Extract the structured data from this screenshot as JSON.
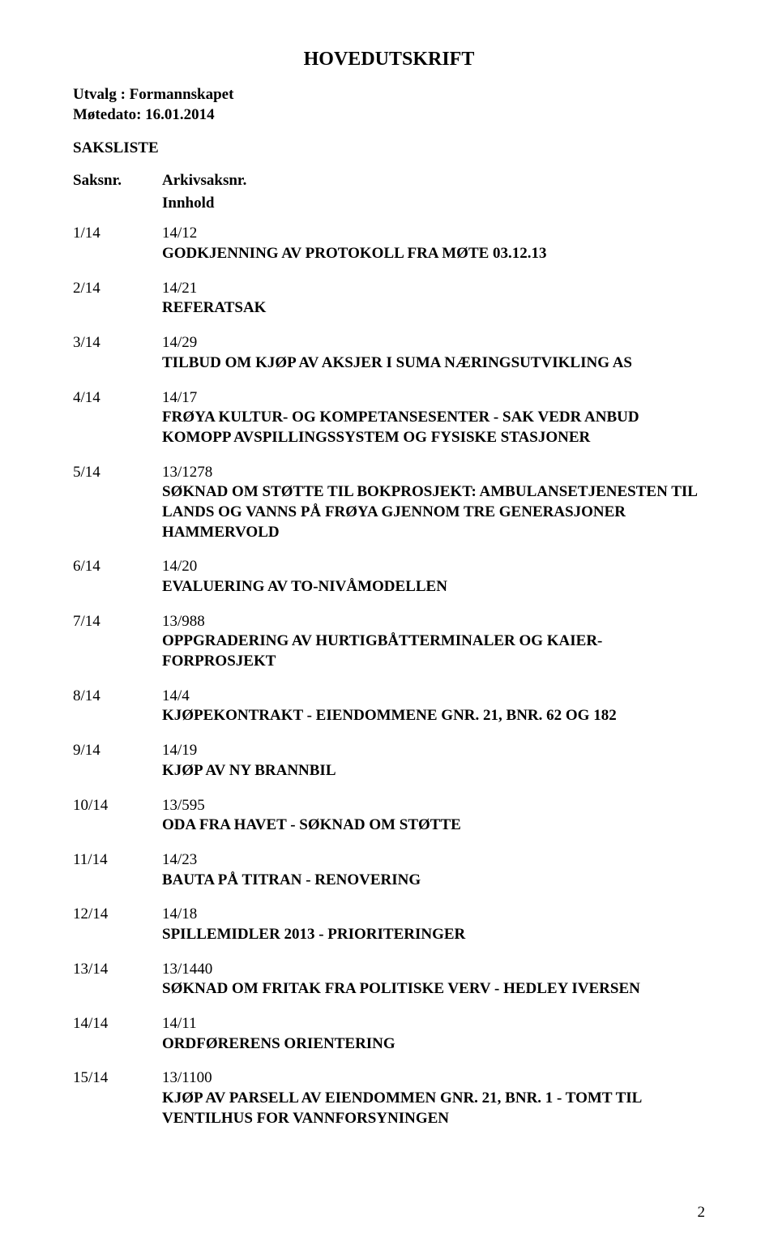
{
  "document_title": "HOVEDUTSKRIFT",
  "utvalg_label": "Utvalg",
  "utvalg_value": "Formannskapet",
  "motedato_label": "Møtedato:",
  "motedato_value": "16.01.2014",
  "sakliste_label": "SAKSLISTE",
  "header_saksnr": "Saksnr.",
  "header_arkiv": "Arkivsaksnr.",
  "header_innhold": "Innhold",
  "items": [
    {
      "saksnr": "1/14",
      "arkiv": "14/12",
      "title": "GODKJENNING AV PROTOKOLL FRA MØTE 03.12.13"
    },
    {
      "saksnr": "2/14",
      "arkiv": "14/21",
      "title": "REFERATSAK"
    },
    {
      "saksnr": "3/14",
      "arkiv": "14/29",
      "title": "TILBUD OM KJØP AV AKSJER I SUMA NÆRINGSUTVIKLING AS"
    },
    {
      "saksnr": "4/14",
      "arkiv": "14/17",
      "title": "FRØYA KULTUR- OG KOMPETANSESENTER - SAK VEDR ANBUD KOMOPP AVSPILLINGSSYSTEM OG FYSISKE STASJONER"
    },
    {
      "saksnr": "5/14",
      "arkiv": "13/1278",
      "title": "SØKNAD OM STØTTE TIL BOKPROSJEKT: AMBULANSETJENESTEN TIL LANDS OG VANNS PÅ FRØYA GJENNOM TRE GENERASJONER HAMMERVOLD"
    },
    {
      "saksnr": "6/14",
      "arkiv": "14/20",
      "title": "EVALUERING AV TO-NIVÅMODELLEN"
    },
    {
      "saksnr": "7/14",
      "arkiv": "13/988",
      "title": "OPPGRADERING AV HURTIGBÅTTERMINALER OG KAIER-FORPROSJEKT"
    },
    {
      "saksnr": "8/14",
      "arkiv": "14/4",
      "title": "KJØPEKONTRAKT - EIENDOMMENE GNR. 21, BNR. 62 OG 182"
    },
    {
      "saksnr": "9/14",
      "arkiv": "14/19",
      "title": "KJØP AV NY BRANNBIL"
    },
    {
      "saksnr": "10/14",
      "arkiv": "13/595",
      "title": "ODA FRA HAVET - SØKNAD OM STØTTE"
    },
    {
      "saksnr": "11/14",
      "arkiv": "14/23",
      "title": "BAUTA PÅ TITRAN - RENOVERING"
    },
    {
      "saksnr": "12/14",
      "arkiv": "14/18",
      "title": "SPILLEMIDLER 2013 - PRIORITERINGER"
    },
    {
      "saksnr": "13/14",
      "arkiv": "13/1440",
      "title": "SØKNAD OM FRITAK FRA POLITISKE VERV - HEDLEY IVERSEN"
    },
    {
      "saksnr": "14/14",
      "arkiv": "14/11",
      "title": "ORDFØRERENS ORIENTERING"
    },
    {
      "saksnr": "15/14",
      "arkiv": "13/1100",
      "title": "KJØP AV PARSELL AV EIENDOMMEN GNR. 21, BNR. 1 - TOMT TIL VENTILHUS FOR VANNFORSYNINGEN"
    }
  ],
  "page_number": "2"
}
